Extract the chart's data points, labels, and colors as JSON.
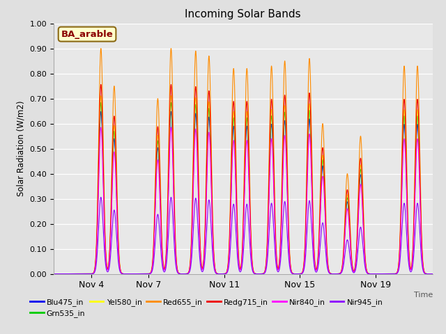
{
  "title": "Incoming Solar Bands",
  "xlabel": "Time",
  "ylabel": "Solar Radiation (W/m2)",
  "ylim": [
    0.0,
    1.0
  ],
  "yticks": [
    0.0,
    0.1,
    0.2,
    0.3,
    0.4,
    0.5,
    0.6,
    0.7,
    0.8,
    0.9,
    1.0
  ],
  "xtick_labels": [
    "Nov 4",
    "Nov 7",
    "Nov 11",
    "Nov 15",
    "Nov 19"
  ],
  "xtick_positions": [
    3,
    6,
    10,
    14,
    18
  ],
  "xlim": [
    1,
    21
  ],
  "background_color": "#e0e0e0",
  "plot_bg_color": "#e8e8e8",
  "annotation_text": "BA_arable",
  "annotation_color": "#8B0000",
  "annotation_bg": "#ffffcc",
  "series": [
    {
      "name": "Blu475_in",
      "color": "#0000EE"
    },
    {
      "name": "Grn535_in",
      "color": "#00CC00"
    },
    {
      "name": "Yel580_in",
      "color": "#FFFF00"
    },
    {
      "name": "Red655_in",
      "color": "#FF8C00"
    },
    {
      "name": "Redg715_in",
      "color": "#EE0000"
    },
    {
      "name": "Nir840_in",
      "color": "#FF00FF"
    },
    {
      "name": "Nir945_in",
      "color": "#8B00FF"
    }
  ],
  "day_peaks_Red655": [
    3.5,
    4.2,
    6.5,
    7.2,
    8.5,
    9.2,
    10.5,
    11.2,
    12.5,
    13.2,
    14.5,
    15.2,
    16.5,
    17.2,
    19.5,
    20.2
  ],
  "day_peak_heights_Red655": [
    0.9,
    0.75,
    0.7,
    0.9,
    0.89,
    0.87,
    0.82,
    0.82,
    0.83,
    0.85,
    0.86,
    0.6,
    0.4,
    0.55,
    0.83,
    0.83
  ],
  "scale_factors": {
    "Blu475_in": 0.72,
    "Grn535_in": 0.76,
    "Yel580_in": 0.79,
    "Red655_in": 1.0,
    "Redg715_in": 0.84,
    "Nir840_in": 0.65,
    "Nir945_in": 0.34
  },
  "peak_sigma": 0.12,
  "figsize": [
    6.4,
    4.8
  ],
  "dpi": 100
}
